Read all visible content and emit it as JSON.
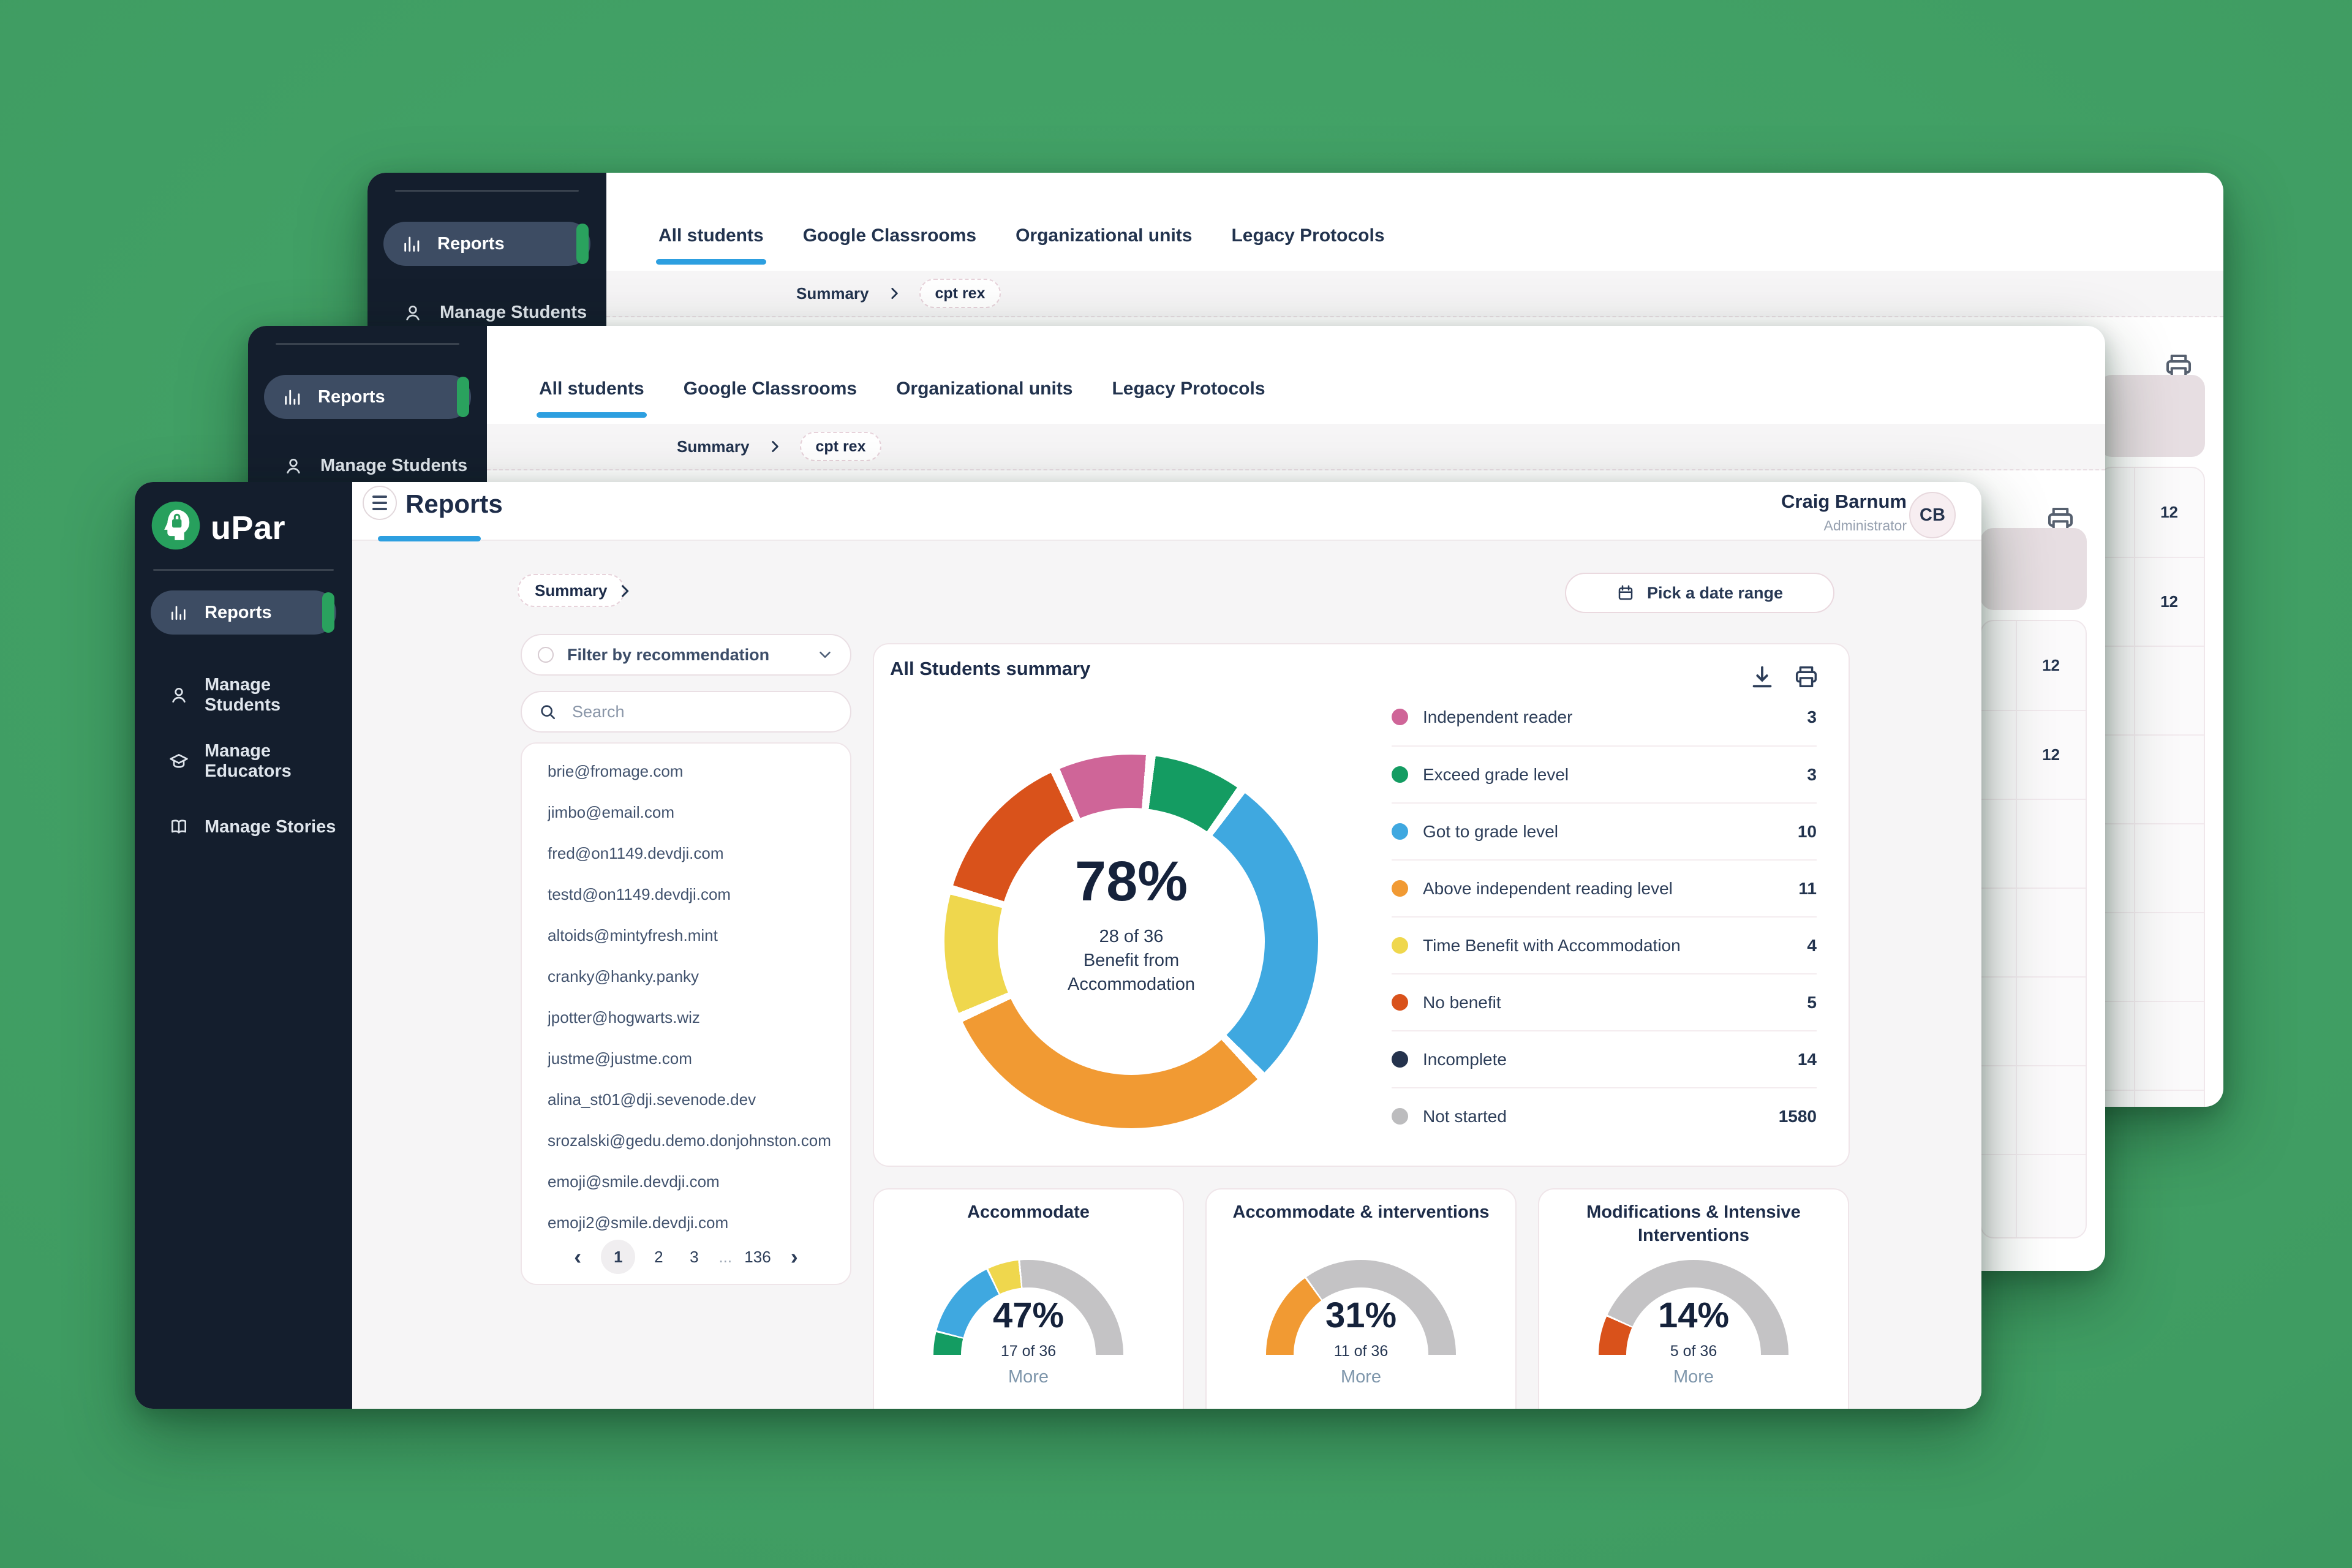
{
  "sidebar": {
    "brand": "uPar",
    "items": [
      {
        "label": "Reports",
        "icon": "bar-chart-icon",
        "active": true
      },
      {
        "label": "Manage Students",
        "icon": "person-icon",
        "active": false
      },
      {
        "label": "Manage Educators",
        "icon": "graduation-cap-icon",
        "active": false
      },
      {
        "label": "Manage Stories",
        "icon": "book-icon",
        "active": false
      }
    ]
  },
  "header": {
    "title": "Reports",
    "user_name": "Craig Barnum",
    "user_role": "Administrator",
    "avatar_initials": "CB"
  },
  "toolbar": {
    "breadcrumb_root": "Summary",
    "date_range_label": "Pick a date range"
  },
  "filters": {
    "recommendation_label": "Filter by recommendation",
    "search_placeholder": "Search"
  },
  "students": {
    "emails": [
      "brie@fromage.com",
      "jimbo@email.com",
      "fred@on1149.devdji.com",
      "testd@on1149.devdji.com",
      "altoids@mintyfresh.mint",
      "cranky@hanky.panky",
      "jpotter@hogwarts.wiz",
      "justme@justme.com",
      "alina_st01@dji.sevenode.dev",
      "srozalski@gedu.demo.donjohnston.com",
      "emoji@smile.devdji.com",
      "emoji2@smile.devdji.com"
    ],
    "pagination": {
      "prev": "‹",
      "pages": [
        "1",
        "2",
        "3",
        "...",
        "136"
      ],
      "current": "1",
      "next": "›"
    }
  },
  "summary": {
    "title": "All Students summary"
  },
  "background_window": {
    "tabs": [
      {
        "label": "All students",
        "active": true
      },
      {
        "label": "Google Classrooms",
        "active": false
      },
      {
        "label": "Organizational units",
        "active": false
      },
      {
        "label": "Legacy Protocols",
        "active": false
      }
    ],
    "breadcrumb_root": "Summary",
    "breadcrumb_current": "cpt rex",
    "sidebar_items": [
      "Reports",
      "Manage Students"
    ],
    "grid_values": [
      "12",
      "12"
    ]
  },
  "chart_data": [
    {
      "type": "pie",
      "title": "All Students summary",
      "center_percent": "78%",
      "center_lines": [
        "28 of 36",
        "Benefit from",
        "Accommodation"
      ],
      "total": 36,
      "slices": [
        {
          "label": "Independent reader",
          "value": 3,
          "color": "#cf6598"
        },
        {
          "label": "Exceed grade level",
          "value": 3,
          "color": "#149c62"
        },
        {
          "label": "Got to grade level",
          "value": 10,
          "color": "#3fa8e0"
        },
        {
          "label": "Above independent reading level",
          "value": 11,
          "color": "#f19a33"
        },
        {
          "label": "Time Benefit with Accommodation",
          "value": 4,
          "color": "#efd74d"
        },
        {
          "label": "No benefit",
          "value": 5,
          "color": "#d9521b"
        }
      ],
      "legend": [
        {
          "label": "Independent reader",
          "count": "3",
          "color": "#cf6598"
        },
        {
          "label": "Exceed grade level",
          "count": "3",
          "color": "#149c62"
        },
        {
          "label": "Got to grade level",
          "count": "10",
          "color": "#3fa8e0"
        },
        {
          "label": "Above independent reading level",
          "count": "11",
          "color": "#f19a33"
        },
        {
          "label": "Time Benefit with Accommodation",
          "count": "4",
          "color": "#efd74d"
        },
        {
          "label": "No benefit",
          "count": "5",
          "color": "#d9521b"
        },
        {
          "label": "Incomplete",
          "count": "14",
          "color": "#25334d"
        },
        {
          "label": "Not started",
          "count": "1580",
          "color": "#bcbcbe"
        }
      ],
      "legend_position": "right"
    },
    {
      "type": "gauge",
      "title": "Accommodate",
      "percent": "47%",
      "fraction": "17 of 36",
      "more_label": "More",
      "total": 36,
      "track_color": "#c4c3c5",
      "segments": [
        {
          "label": "Exceed grade level",
          "value": 3,
          "color": "#149c62"
        },
        {
          "label": "Got to grade level",
          "value": 10,
          "color": "#3fa8e0"
        },
        {
          "label": "Time Benefit with Accommodation",
          "value": 4,
          "color": "#efd74d"
        }
      ]
    },
    {
      "type": "gauge",
      "title": "Accommodate & interventions",
      "percent": "31%",
      "fraction": "11 of 36",
      "more_label": "More",
      "total": 36,
      "track_color": "#c4c3c5",
      "segments": [
        {
          "label": "Above independent reading level",
          "value": 11,
          "color": "#f19a33"
        }
      ]
    },
    {
      "type": "gauge",
      "title": "Modifications & Intensive Interventions",
      "percent": "14%",
      "fraction": "5 of 36",
      "more_label": "More",
      "total": 36,
      "track_color": "#c4c3c5",
      "segments": [
        {
          "label": "No benefit",
          "value": 5,
          "color": "#d9521b"
        }
      ]
    }
  ]
}
